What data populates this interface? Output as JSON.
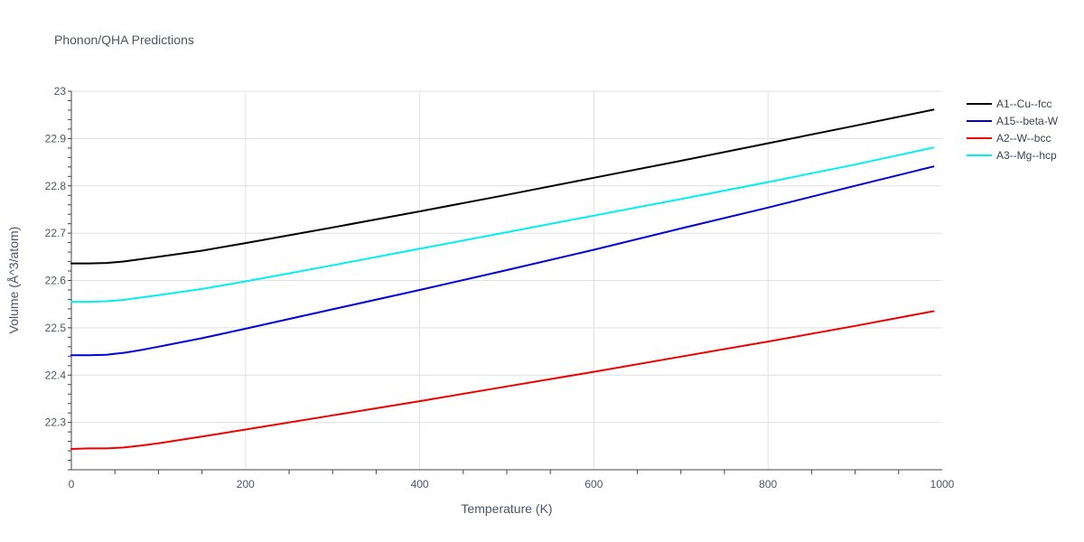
{
  "chart_data": {
    "type": "line",
    "title": "Phonon/QHA Predictions",
    "xlabel": "Temperature (K)",
    "ylabel": "Volume (Å^3/atom)",
    "xlim": [
      0,
      1000
    ],
    "ylim": [
      22.2,
      23.0
    ],
    "xticks": [
      0,
      200,
      400,
      600,
      800,
      1000
    ],
    "yticks": [
      22.3,
      22.4,
      22.5,
      22.6,
      22.7,
      22.8,
      22.9,
      23
    ],
    "grid": true,
    "legend_position": "top-right",
    "series": [
      {
        "name": "A1--Cu--fcc",
        "color": "#000000",
        "x": [
          0,
          20,
          40,
          60,
          80,
          100,
          150,
          200,
          300,
          400,
          500,
          600,
          700,
          800,
          900,
          990
        ],
        "y": [
          22.636,
          22.636,
          22.637,
          22.64,
          22.645,
          22.65,
          22.663,
          22.679,
          22.712,
          22.746,
          22.781,
          22.817,
          22.853,
          22.89,
          22.927,
          22.961
        ]
      },
      {
        "name": "A15--beta-W",
        "color": "#0000dd",
        "x": [
          0,
          20,
          40,
          60,
          80,
          100,
          150,
          200,
          300,
          400,
          500,
          600,
          700,
          800,
          900,
          990
        ],
        "y": [
          22.442,
          22.442,
          22.443,
          22.447,
          22.453,
          22.46,
          22.478,
          22.498,
          22.539,
          22.58,
          22.622,
          22.665,
          22.71,
          22.754,
          22.8,
          22.841
        ]
      },
      {
        "name": "A2--W--bcc",
        "color": "#ee0000",
        "x": [
          0,
          20,
          40,
          60,
          80,
          100,
          150,
          200,
          300,
          400,
          500,
          600,
          700,
          800,
          900,
          990
        ],
        "y": [
          22.244,
          22.245,
          22.245,
          22.247,
          22.251,
          22.256,
          22.27,
          22.285,
          22.315,
          22.345,
          22.376,
          22.407,
          22.439,
          22.471,
          22.504,
          22.535
        ]
      },
      {
        "name": "A3--Mg--hcp",
        "color": "#00f0f0",
        "x": [
          0,
          20,
          40,
          60,
          80,
          100,
          150,
          200,
          300,
          400,
          500,
          600,
          700,
          800,
          900,
          990
        ],
        "y": [
          22.555,
          22.555,
          22.556,
          22.559,
          22.564,
          22.569,
          22.582,
          22.598,
          22.632,
          22.667,
          22.702,
          22.737,
          22.772,
          22.808,
          22.845,
          22.881
        ]
      }
    ]
  }
}
